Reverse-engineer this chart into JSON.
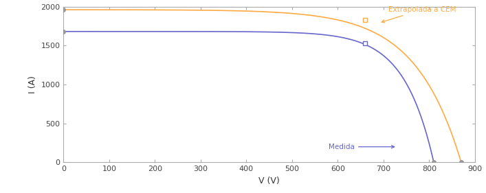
{
  "xlabel": "V (V)",
  "ylabel": "I (A)",
  "xlim": [
    0,
    900
  ],
  "ylim": [
    0,
    2000
  ],
  "xticks": [
    0,
    100,
    200,
    300,
    400,
    500,
    600,
    700,
    800,
    900
  ],
  "yticks": [
    0,
    500,
    1000,
    1500,
    2000
  ],
  "blue_color": "#6666cc",
  "orange_color": "#ffaa44",
  "blue_isc": 1680,
  "orange_isc": 1960,
  "blue_voc": 810,
  "orange_voc": 870,
  "blue_mpp_v": 660,
  "blue_mpp_i": 1530,
  "orange_mpp_v": 660,
  "orange_mpp_i": 1830,
  "label_medida": "Medida",
  "label_extrapolada": "Extrapolada a CEM",
  "bg_color": "#ffffff",
  "axes_color": "#aaaaaa",
  "blue_knee": 65,
  "orange_knee": 100
}
